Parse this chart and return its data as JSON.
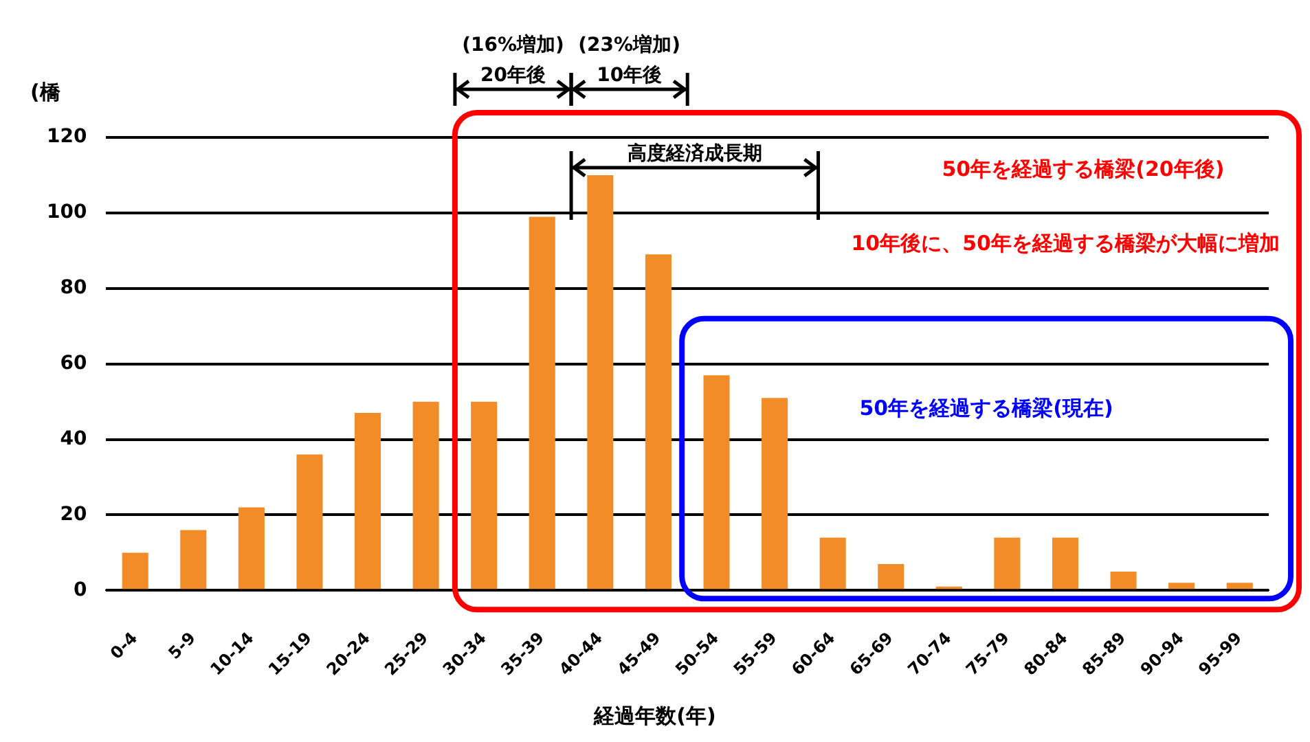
{
  "chart_data": {
    "type": "bar",
    "xlabel": "経過年数(年)",
    "ylabel": "(橋",
    "categories": [
      "0-4",
      "5-9",
      "10-14",
      "15-19",
      "20-24",
      "25-29",
      "30-34",
      "35-39",
      "40-44",
      "45-49",
      "50-54",
      "55-59",
      "60-64",
      "65-69",
      "70-74",
      "75-79",
      "80-84",
      "85-89",
      "90-94",
      "95-99"
    ],
    "values": [
      10,
      16,
      22,
      36,
      47,
      50,
      50,
      99,
      110,
      89,
      57,
      51,
      14,
      7,
      1,
      14,
      14,
      5,
      2,
      2
    ],
    "color": "#f28c28",
    "ylim": [
      0,
      120
    ],
    "yticks": [
      0,
      20,
      40,
      60,
      80,
      100,
      120
    ],
    "grid": "y",
    "legend": false,
    "annotations": [
      "(16%増加)",
      "20年後",
      "(23%増加)",
      "10年後",
      "高度経済成長期",
      "50年を経過する橋梁(20年後)",
      "10年後に、50年を経過する橋梁が大幅に増加",
      "50年を経過する橋梁(現在)"
    ]
  }
}
